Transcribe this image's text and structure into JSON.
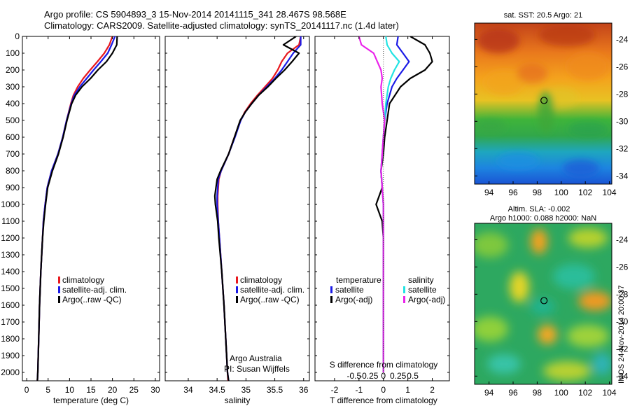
{
  "header": {
    "line1": "Argo profile: CS 5904893_3 15-Nov-2014 20141115_341 28.467S 98.568E",
    "line2": "Climatology: CARS2009. Satellite-adjusted climatology: synTS_20141117.nc (1.4d later)"
  },
  "credits": {
    "org": "Argo Australia",
    "pi": "PI: Susan Wijffels",
    "imos": "IMOS 24-Nov-2014 20:00:37"
  },
  "colors": {
    "climatology": "#e8191e",
    "satellite": "#1a1ae6",
    "argo": "#000000",
    "sal_satellite": "#22e3e3",
    "sal_argo": "#ea22ea"
  },
  "chart_data": [
    {
      "type": "line",
      "xlabel": "temperature (deg C)",
      "ylabel": "",
      "xlim": [
        -1,
        31
      ],
      "ylim": [
        2050,
        0
      ],
      "xticks": [
        "0",
        "5",
        "10",
        "15",
        "20",
        "25",
        "30"
      ],
      "yticks": [
        "0",
        "100",
        "200",
        "300",
        "400",
        "500",
        "600",
        "700",
        "800",
        "900",
        "1000",
        "1100",
        "1200",
        "1300",
        "1400",
        "1500",
        "1600",
        "1700",
        "1800",
        "1900",
        "2000"
      ],
      "legend": [
        "climatology",
        "satellite-adj. clim.",
        "Argo(..raw -QC)"
      ],
      "depth": [
        0,
        50,
        100,
        150,
        200,
        250,
        300,
        350,
        400,
        500,
        600,
        700,
        800,
        900,
        1000,
        1100,
        1200,
        1400,
        1600,
        1800,
        2000,
        2050
      ],
      "series": [
        {
          "name": "climatology",
          "values": [
            20,
            19.3,
            18.1,
            16.5,
            14.8,
            13.2,
            11.9,
            10.9,
            10.3,
            9.3,
            8.4,
            7.3,
            5.8,
            4.8,
            4.3,
            3.9,
            3.7,
            3.3,
            3.0,
            2.8,
            2.6,
            2.5
          ]
        },
        {
          "name": "satellite-adj. clim.",
          "values": [
            20.6,
            19.8,
            18.9,
            17.3,
            15.6,
            14.0,
            12.4,
            11.1,
            10.4,
            9.3,
            8.4,
            7.3,
            5.8,
            4.8,
            4.3,
            3.9,
            3.7,
            3.3,
            3.0,
            2.8,
            2.6,
            2.5
          ]
        },
        {
          "name": "Argo(..raw -QC)",
          "values": [
            21.1,
            21.0,
            20.0,
            18.6,
            16.6,
            14.9,
            12.9,
            11.4,
            10.5,
            9.4,
            8.5,
            7.4,
            6.0,
            4.9,
            4.4,
            4.0,
            3.7,
            3.3,
            3.0,
            2.8,
            2.6,
            2.5
          ]
        }
      ]
    },
    {
      "type": "line",
      "xlabel": "salinity",
      "xlim": [
        33.6,
        36.1
      ],
      "ylim": [
        2050,
        0
      ],
      "xticks": [
        "34",
        "34.5",
        "35",
        "35.5",
        "36"
      ],
      "legend": [
        "climatology",
        "satellite-adj. clim.",
        "Argo(..raw -QC)"
      ],
      "depth": [
        0,
        50,
        100,
        150,
        200,
        250,
        300,
        350,
        400,
        450,
        500,
        600,
        700,
        800,
        850,
        900,
        950,
        1000,
        1100,
        1200,
        1400,
        1600,
        1800,
        2000,
        2050
      ],
      "series": [
        {
          "name": "climatology",
          "values": [
            35.95,
            35.92,
            35.72,
            35.62,
            35.55,
            35.46,
            35.33,
            35.2,
            35.08,
            34.98,
            34.91,
            34.8,
            34.7,
            34.57,
            34.53,
            34.52,
            34.51,
            34.51,
            34.52,
            34.54,
            34.58,
            34.62,
            34.65,
            34.68,
            34.69
          ]
        },
        {
          "name": "satellite-adj. clim.",
          "values": [
            35.95,
            35.95,
            35.82,
            35.72,
            35.62,
            35.5,
            35.36,
            35.22,
            35.1,
            34.99,
            34.91,
            34.81,
            34.7,
            34.57,
            34.52,
            34.51,
            34.5,
            34.5,
            34.52,
            34.54,
            34.58,
            34.62,
            34.65,
            34.68,
            34.7
          ]
        },
        {
          "name": "Argo(..raw -QC)",
          "values": [
            35.87,
            35.65,
            35.92,
            35.8,
            35.67,
            35.52,
            35.38,
            35.22,
            35.1,
            34.99,
            34.9,
            34.8,
            34.7,
            34.56,
            34.5,
            34.48,
            34.46,
            34.47,
            34.51,
            34.53,
            34.58,
            34.62,
            34.65,
            34.68,
            34.7
          ]
        }
      ]
    },
    {
      "type": "line",
      "xlabel": "T difference from climatology",
      "top_label": "S difference from climatology",
      "xlim": [
        -2.8,
        2.7
      ],
      "ylim": [
        2050,
        0
      ],
      "xticks": [
        "-2",
        "-1",
        "0",
        "1",
        "2"
      ],
      "top_ticks": [
        "-0.5",
        "-0.25",
        "0",
        "0.25",
        "0.5"
      ],
      "legend": {
        "temperature_title": "temperature",
        "salinity_title": "salinity",
        "entries": [
          "satellite",
          "Argo(-adj)",
          "satellite",
          "Argo(-adj)"
        ]
      },
      "depth": [
        0,
        50,
        100,
        150,
        200,
        250,
        300,
        400,
        500,
        600,
        700,
        800,
        900,
        1000,
        1100,
        1200,
        1400,
        1600,
        1800,
        2000
      ],
      "series": [
        {
          "name": "temperature satellite",
          "values": [
            0.6,
            0.55,
            0.8,
            1.05,
            0.8,
            0.55,
            0.35,
            0.15,
            0.05,
            0.0,
            -0.05,
            -0.1,
            -0.05,
            0.0,
            0.0,
            0.0,
            0.0,
            0.0,
            0.0,
            0.0
          ]
        },
        {
          "name": "temperature Argo(-adj)",
          "values": [
            1.1,
            1.7,
            1.9,
            2.0,
            1.7,
            1.1,
            0.7,
            0.25,
            0.15,
            0.05,
            0.0,
            -0.1,
            -0.05,
            -0.3,
            -0.05,
            0.0,
            0.0,
            0.0,
            0.0,
            0.0
          ]
        },
        {
          "name": "salinity satellite",
          "values": [
            0.1,
            0.15,
            0.35,
            0.65,
            0.45,
            0.3,
            0.2,
            0.1,
            0.05,
            0.0,
            -0.05,
            -0.1,
            -0.05,
            0.0,
            0.0,
            0.0,
            0.0,
            0.0,
            0.0,
            0.0
          ]
        },
        {
          "name": "salinity Argo(-adj)",
          "values": [
            -1.0,
            -0.9,
            -0.4,
            -0.25,
            -0.1,
            -0.05,
            -0.1,
            -0.05,
            0.05,
            0.0,
            -0.05,
            -0.1,
            -0.05,
            0.0,
            0.0,
            0.0,
            0.0,
            0.0,
            0.0,
            0.0
          ]
        }
      ]
    },
    {
      "type": "heatmap",
      "title": "sat. SST: 20.5 Argo: 21",
      "xlim": [
        92.8,
        104.2
      ],
      "ylim": [
        -34.6,
        -22.8
      ],
      "xticks": [
        "94",
        "96",
        "98",
        "100",
        "102",
        "104"
      ],
      "yticks": [
        "-24",
        "-26",
        "-28",
        "-30",
        "-32",
        "-34"
      ],
      "marker": {
        "lon": 98.568,
        "lat": -28.467
      }
    },
    {
      "type": "heatmap",
      "title": "Altim. SLA: -0.002",
      "subtitle": "Argo h1000: 0.088 h2000: NaN",
      "xlim": [
        92.8,
        104.2
      ],
      "ylim": [
        -34.6,
        -22.8
      ],
      "xticks": [
        "94",
        "96",
        "98",
        "100",
        "102",
        "104"
      ],
      "yticks": [
        "-24",
        "-26",
        "-28",
        "-30",
        "-32",
        "-34"
      ],
      "marker": {
        "lon": 98.568,
        "lat": -28.467
      }
    }
  ]
}
